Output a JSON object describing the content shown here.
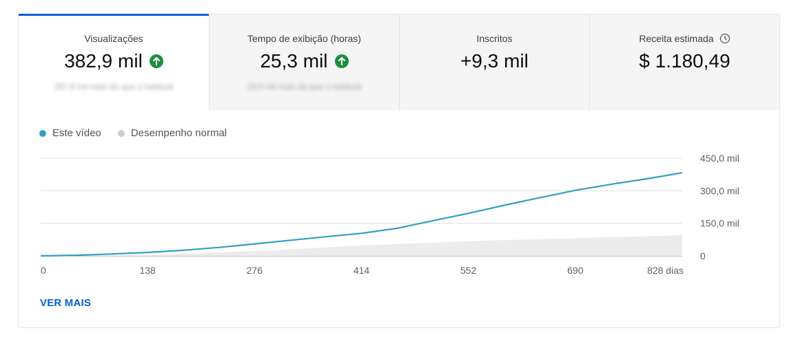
{
  "tabs": [
    {
      "label": "Visualizações",
      "value": "382,9 mil",
      "sub": "287,6 mil mais do que o habitual",
      "trend": "up"
    },
    {
      "label": "Tempo de exibição (horas)",
      "value": "25,3 mil",
      "sub": "19,0 mil mais do que o habitual",
      "trend": "up"
    },
    {
      "label": "Inscritos",
      "value": "+9,3 mil"
    },
    {
      "label": "Receita estimada",
      "value": "$ 1.180,49",
      "icon": "clock-icon"
    }
  ],
  "legend": {
    "this_video": "Este vídeo",
    "normal": "Desempenho normal"
  },
  "colors": {
    "accent": "#065fd4",
    "series": "#2f9fc2",
    "normal": "#cccccc",
    "up": "#1e8e3e"
  },
  "see_more": "VER MAIS",
  "chart_data": {
    "type": "line",
    "x_ticks": [
      "0",
      "138",
      "276",
      "414",
      "552",
      "690",
      "828 dias"
    ],
    "y_ticks": [
      "450,0 mil",
      "300,0 mil",
      "150,0 mil",
      "0"
    ],
    "xlim": [
      0,
      828
    ],
    "ylim": [
      0,
      450000
    ],
    "grid": true,
    "series": [
      {
        "name": "Este vídeo",
        "x": [
          0,
          46,
          92,
          138,
          184,
          230,
          276,
          322,
          368,
          414,
          460,
          506,
          552,
          598,
          644,
          690,
          736,
          782,
          828
        ],
        "y": [
          0,
          3000,
          9000,
          16000,
          26000,
          39000,
          55000,
          72000,
          88000,
          104000,
          127000,
          162000,
          196000,
          233000,
          268000,
          302000,
          330000,
          355000,
          382900
        ]
      },
      {
        "name": "Desempenho normal",
        "x": [
          0,
          138,
          276,
          414,
          552,
          690,
          828
        ],
        "y": [
          0,
          4000,
          22000,
          48000,
          68000,
          82000,
          95000
        ]
      }
    ]
  }
}
